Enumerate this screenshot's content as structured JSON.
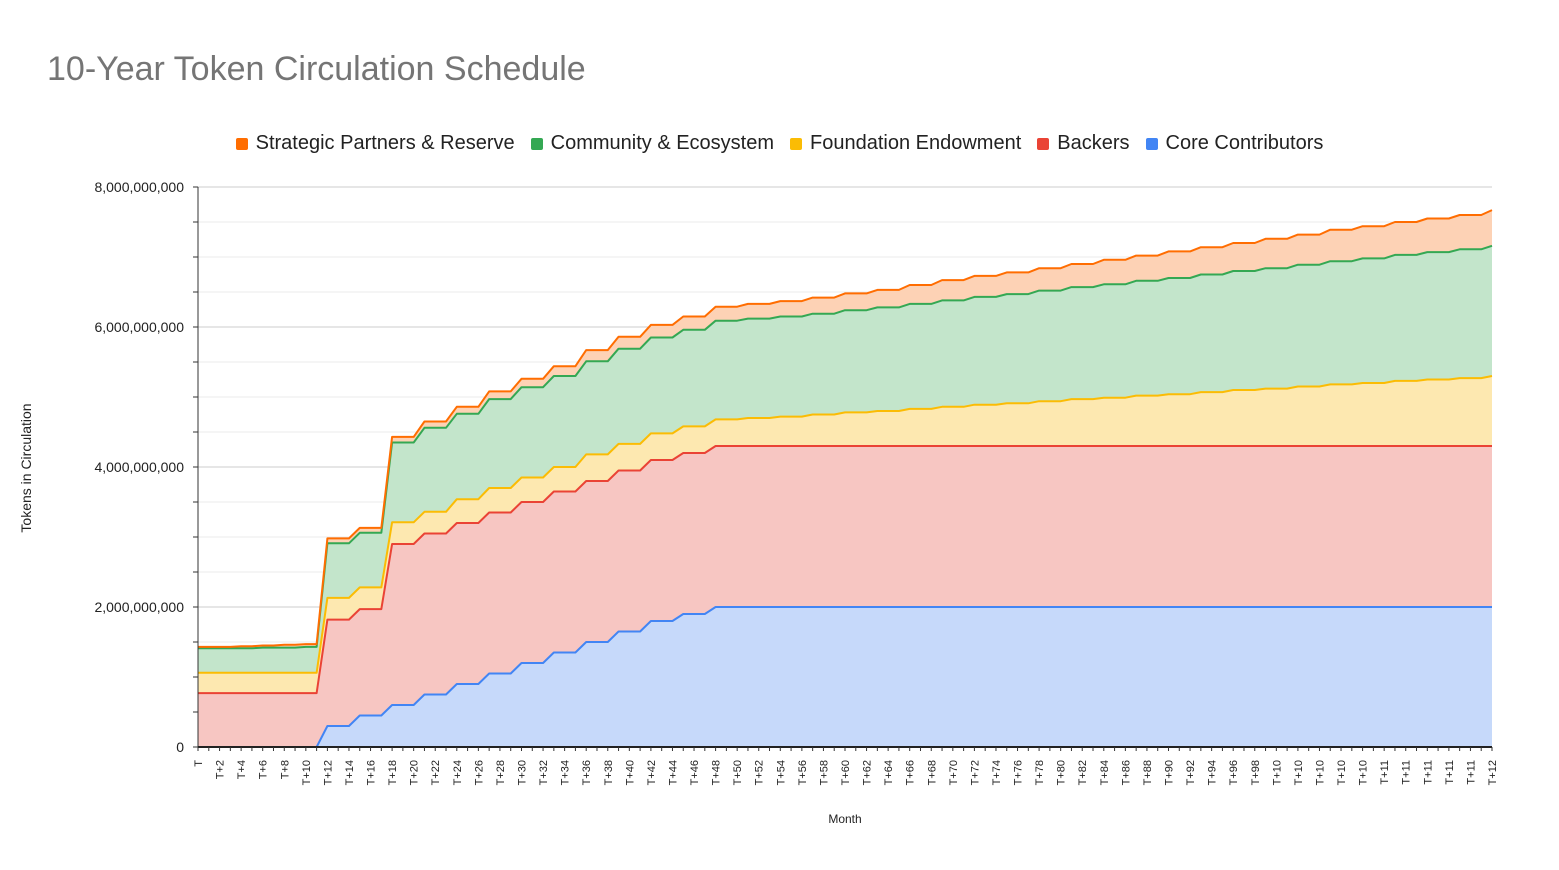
{
  "chart_data": {
    "type": "area",
    "stacked": true,
    "title": "10-Year Token Circulation Schedule",
    "xlabel": "Month",
    "ylabel": "Tokens in Circulation",
    "ylim": [
      0,
      8000000000
    ],
    "yticks": [
      0,
      2000000000,
      4000000000,
      6000000000,
      8000000000
    ],
    "ytick_labels": [
      "0",
      "2,000,000,000",
      "4,000,000,000",
      "6,000,000,000",
      "8,000,000,000"
    ],
    "grid": true,
    "legend_position": "top",
    "x_tick_labels": [
      "T",
      "T+2",
      "T+4",
      "T+6",
      "T+8",
      "T+10",
      "T+12",
      "T+14",
      "T+16",
      "T+18",
      "T+20",
      "T+22",
      "T+24",
      "T+26",
      "T+28",
      "T+30",
      "T+32",
      "T+34",
      "T+36",
      "T+38",
      "T+40",
      "T+42",
      "T+44",
      "T+46",
      "T+48",
      "T+50",
      "T+52",
      "T+54",
      "T+56",
      "T+58",
      "T+60",
      "T+62",
      "T+64",
      "T+66",
      "T+68",
      "T+70",
      "T+72",
      "T+74",
      "T+76",
      "T+78",
      "T+80",
      "T+82",
      "T+84",
      "T+86",
      "T+88",
      "T+90",
      "T+92",
      "T+94",
      "T+96",
      "T+98",
      "T+10",
      "T+10",
      "T+10",
      "T+10",
      "T+10",
      "T+11",
      "T+11",
      "T+11",
      "T+11",
      "T+11",
      "T+12"
    ],
    "series": [
      {
        "name": "Core Contributors",
        "color": "#4285f4",
        "fill": "#c6d9fa",
        "values": [
          0,
          0,
          0,
          0,
          0,
          0,
          0,
          0,
          0,
          0,
          0,
          0,
          300000000,
          300000000,
          300000000,
          450000000,
          450000000,
          450000000,
          600000000,
          600000000,
          600000000,
          750000000,
          750000000,
          750000000,
          900000000,
          900000000,
          900000000,
          1050000000,
          1050000000,
          1050000000,
          1200000000,
          1200000000,
          1200000000,
          1350000000,
          1350000000,
          1350000000,
          1500000000,
          1500000000,
          1500000000,
          1650000000,
          1650000000,
          1650000000,
          1800000000,
          1800000000,
          1800000000,
          1900000000,
          1900000000,
          1900000000,
          2000000000,
          2000000000,
          2000000000,
          2000000000,
          2000000000,
          2000000000,
          2000000000,
          2000000000,
          2000000000,
          2000000000,
          2000000000,
          2000000000,
          2000000000,
          2000000000,
          2000000000,
          2000000000,
          2000000000,
          2000000000,
          2000000000,
          2000000000,
          2000000000,
          2000000000,
          2000000000,
          2000000000,
          2000000000,
          2000000000,
          2000000000,
          2000000000,
          2000000000,
          2000000000,
          2000000000,
          2000000000,
          2000000000,
          2000000000,
          2000000000,
          2000000000,
          2000000000,
          2000000000,
          2000000000,
          2000000000,
          2000000000,
          2000000000,
          2000000000,
          2000000000,
          2000000000,
          2000000000,
          2000000000,
          2000000000,
          2000000000,
          2000000000,
          2000000000,
          2000000000,
          2000000000,
          2000000000,
          2000000000,
          2000000000,
          2000000000,
          2000000000,
          2000000000,
          2000000000,
          2000000000,
          2000000000,
          2000000000,
          2000000000,
          2000000000,
          2000000000,
          2000000000,
          2000000000,
          2000000000,
          2000000000,
          2000000000,
          2000000000,
          2000000000
        ]
      },
      {
        "name": "Backers",
        "color": "#ea4335",
        "fill": "#f7c6c2",
        "values": [
          770000000,
          770000000,
          770000000,
          770000000,
          770000000,
          770000000,
          770000000,
          770000000,
          770000000,
          770000000,
          770000000,
          770000000,
          1520000000,
          1520000000,
          1520000000,
          1520000000,
          1520000000,
          1520000000,
          2300000000,
          2300000000,
          2300000000,
          2300000000,
          2300000000,
          2300000000,
          2300000000,
          2300000000,
          2300000000,
          2300000000,
          2300000000,
          2300000000,
          2300000000,
          2300000000,
          2300000000,
          2300000000,
          2300000000,
          2300000000,
          2300000000,
          2300000000,
          2300000000,
          2300000000,
          2300000000,
          2300000000,
          2300000000,
          2300000000,
          2300000000,
          2300000000,
          2300000000,
          2300000000,
          2300000000,
          2300000000,
          2300000000,
          2300000000,
          2300000000,
          2300000000,
          2300000000,
          2300000000,
          2300000000,
          2300000000,
          2300000000,
          2300000000,
          2300000000,
          2300000000,
          2300000000,
          2300000000,
          2300000000,
          2300000000,
          2300000000,
          2300000000,
          2300000000,
          2300000000,
          2300000000,
          2300000000,
          2300000000,
          2300000000,
          2300000000,
          2300000000,
          2300000000,
          2300000000,
          2300000000,
          2300000000,
          2300000000,
          2300000000,
          2300000000,
          2300000000,
          2300000000,
          2300000000,
          2300000000,
          2300000000,
          2300000000,
          2300000000,
          2300000000,
          2300000000,
          2300000000,
          2300000000,
          2300000000,
          2300000000,
          2300000000,
          2300000000,
          2300000000,
          2300000000,
          2300000000,
          2300000000,
          2300000000,
          2300000000,
          2300000000,
          2300000000,
          2300000000,
          2300000000,
          2300000000,
          2300000000,
          2300000000,
          2300000000,
          2300000000,
          2300000000,
          2300000000,
          2300000000,
          2300000000,
          2300000000,
          2300000000,
          2300000000,
          2300000000
        ]
      },
      {
        "name": "Foundation Endowment",
        "color": "#fbbc04",
        "fill": "#fde8b0",
        "values": [
          290000000,
          290000000,
          290000000,
          290000000,
          290000000,
          290000000,
          290000000,
          290000000,
          290000000,
          290000000,
          290000000,
          290000000,
          310000000,
          310000000,
          310000000,
          310000000,
          310000000,
          310000000,
          310000000,
          310000000,
          310000000,
          310000000,
          310000000,
          310000000,
          340000000,
          340000000,
          340000000,
          350000000,
          350000000,
          350000000,
          350000000,
          350000000,
          350000000,
          350000000,
          350000000,
          350000000,
          380000000,
          380000000,
          380000000,
          380000000,
          380000000,
          380000000,
          380000000,
          380000000,
          380000000,
          380000000,
          380000000,
          380000000,
          380000000,
          380000000,
          380000000,
          400000000,
          400000000,
          400000000,
          420000000,
          420000000,
          420000000,
          450000000,
          450000000,
          450000000,
          480000000,
          480000000,
          480000000,
          500000000,
          500000000,
          500000000,
          530000000,
          530000000,
          530000000,
          560000000,
          560000000,
          560000000,
          590000000,
          590000000,
          590000000,
          610000000,
          610000000,
          610000000,
          640000000,
          640000000,
          640000000,
          670000000,
          670000000,
          670000000,
          690000000,
          690000000,
          690000000,
          720000000,
          720000000,
          720000000,
          740000000,
          740000000,
          740000000,
          770000000,
          770000000,
          770000000,
          800000000,
          800000000,
          800000000,
          820000000,
          820000000,
          820000000,
          850000000,
          850000000,
          850000000,
          880000000,
          880000000,
          880000000,
          900000000,
          900000000,
          900000000,
          930000000,
          930000000,
          930000000,
          950000000,
          950000000,
          950000000,
          970000000,
          970000000,
          970000000,
          1000000000
        ]
      },
      {
        "name": "Community & Ecosystem",
        "color": "#34a853",
        "fill": "#c3e5cb",
        "values": [
          350000000,
          350000000,
          350000000,
          350000000,
          350000000,
          350000000,
          360000000,
          360000000,
          360000000,
          360000000,
          370000000,
          370000000,
          780000000,
          780000000,
          780000000,
          780000000,
          780000000,
          780000000,
          1140000000,
          1140000000,
          1140000000,
          1200000000,
          1200000000,
          1200000000,
          1220000000,
          1220000000,
          1220000000,
          1270000000,
          1270000000,
          1270000000,
          1290000000,
          1290000000,
          1290000000,
          1300000000,
          1300000000,
          1300000000,
          1330000000,
          1330000000,
          1330000000,
          1360000000,
          1360000000,
          1360000000,
          1370000000,
          1370000000,
          1370000000,
          1380000000,
          1380000000,
          1380000000,
          1410000000,
          1410000000,
          1410000000,
          1420000000,
          1420000000,
          1420000000,
          1430000000,
          1430000000,
          1430000000,
          1440000000,
          1440000000,
          1440000000,
          1460000000,
          1460000000,
          1460000000,
          1480000000,
          1480000000,
          1480000000,
          1500000000,
          1500000000,
          1500000000,
          1520000000,
          1520000000,
          1520000000,
          1540000000,
          1540000000,
          1540000000,
          1560000000,
          1560000000,
          1560000000,
          1580000000,
          1580000000,
          1580000000,
          1600000000,
          1600000000,
          1600000000,
          1620000000,
          1620000000,
          1620000000,
          1640000000,
          1640000000,
          1640000000,
          1660000000,
          1660000000,
          1660000000,
          1680000000,
          1680000000,
          1680000000,
          1700000000,
          1700000000,
          1700000000,
          1720000000,
          1720000000,
          1720000000,
          1740000000,
          1740000000,
          1740000000,
          1760000000,
          1760000000,
          1760000000,
          1780000000,
          1780000000,
          1780000000,
          1800000000,
          1800000000,
          1800000000,
          1820000000,
          1820000000,
          1820000000,
          1840000000,
          1840000000,
          1840000000,
          1860000000
        ]
      },
      {
        "name": "Strategic Partners & Reserve",
        "color": "#ff6d01",
        "fill": "#fdd2b5",
        "values": [
          20000000,
          20000000,
          20000000,
          20000000,
          30000000,
          30000000,
          30000000,
          30000000,
          40000000,
          40000000,
          40000000,
          40000000,
          70000000,
          70000000,
          70000000,
          70000000,
          70000000,
          70000000,
          80000000,
          80000000,
          80000000,
          90000000,
          90000000,
          90000000,
          100000000,
          100000000,
          100000000,
          110000000,
          110000000,
          110000000,
          120000000,
          120000000,
          120000000,
          140000000,
          140000000,
          140000000,
          160000000,
          160000000,
          160000000,
          170000000,
          170000000,
          170000000,
          180000000,
          180000000,
          180000000,
          190000000,
          190000000,
          190000000,
          200000000,
          200000000,
          200000000,
          210000000,
          210000000,
          210000000,
          220000000,
          220000000,
          220000000,
          230000000,
          230000000,
          230000000,
          240000000,
          240000000,
          240000000,
          250000000,
          250000000,
          250000000,
          270000000,
          270000000,
          270000000,
          290000000,
          290000000,
          290000000,
          300000000,
          300000000,
          300000000,
          310000000,
          310000000,
          310000000,
          320000000,
          320000000,
          320000000,
          330000000,
          330000000,
          330000000,
          350000000,
          350000000,
          350000000,
          360000000,
          360000000,
          360000000,
          380000000,
          380000000,
          380000000,
          390000000,
          390000000,
          390000000,
          400000000,
          400000000,
          400000000,
          420000000,
          420000000,
          420000000,
          430000000,
          430000000,
          430000000,
          450000000,
          450000000,
          450000000,
          460000000,
          460000000,
          460000000,
          470000000,
          470000000,
          470000000,
          480000000,
          480000000,
          480000000,
          490000000,
          490000000,
          490000000,
          510000000
        ]
      }
    ]
  }
}
